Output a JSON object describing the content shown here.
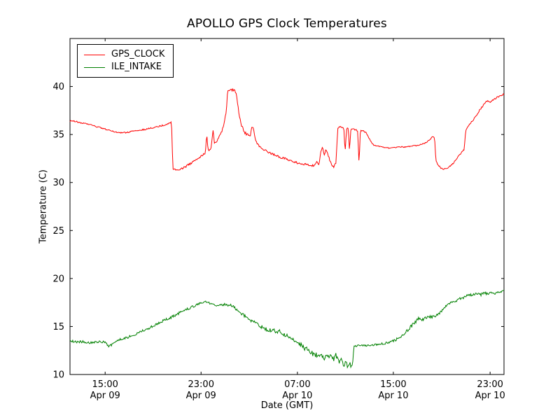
{
  "chart_data": {
    "type": "line",
    "title": "APOLLO GPS Clock Temperatures",
    "xlabel": "Date (GMT)",
    "ylabel": "Temperature (C)",
    "ylim": [
      10,
      45
    ],
    "yticks": [
      10,
      15,
      20,
      25,
      30,
      35,
      40
    ],
    "xticks": [
      {
        "pos": 0.081,
        "time": "15:00",
        "date": "Apr 09"
      },
      {
        "pos": 0.302,
        "time": "23:00",
        "date": "Apr 09"
      },
      {
        "pos": 0.524,
        "time": "07:00",
        "date": "Apr 10"
      },
      {
        "pos": 0.745,
        "time": "15:00",
        "date": "Apr 10"
      },
      {
        "pos": 0.968,
        "time": "23:00",
        "date": "Apr 10"
      }
    ],
    "grid": false,
    "legend_position": "upper-left",
    "colors": {
      "background": "#ffffff",
      "axes": "#000000",
      "text": "#000000"
    },
    "series": [
      {
        "name": "GPS_CLOCK",
        "color": "#ff0000",
        "points": [
          [
            0.0,
            36.4
          ],
          [
            0.01,
            36.4
          ],
          [
            0.025,
            36.2
          ],
          [
            0.04,
            36.1
          ],
          [
            0.055,
            35.9
          ],
          [
            0.07,
            35.7
          ],
          [
            0.085,
            35.5
          ],
          [
            0.1,
            35.3
          ],
          [
            0.115,
            35.2
          ],
          [
            0.13,
            35.2
          ],
          [
            0.15,
            35.4
          ],
          [
            0.17,
            35.5
          ],
          [
            0.19,
            35.7
          ],
          [
            0.21,
            35.9
          ],
          [
            0.225,
            36.1
          ],
          [
            0.234,
            36.3
          ],
          [
            0.237,
            31.4
          ],
          [
            0.245,
            31.3
          ],
          [
            0.255,
            31.4
          ],
          [
            0.265,
            31.6
          ],
          [
            0.275,
            31.9
          ],
          [
            0.285,
            32.2
          ],
          [
            0.295,
            32.5
          ],
          [
            0.305,
            32.8
          ],
          [
            0.312,
            33.1
          ],
          [
            0.315,
            35.2
          ],
          [
            0.318,
            33.3
          ],
          [
            0.325,
            33.6
          ],
          [
            0.33,
            35.5
          ],
          [
            0.333,
            34.0
          ],
          [
            0.34,
            34.4
          ],
          [
            0.345,
            34.9
          ],
          [
            0.35,
            35.3
          ],
          [
            0.355,
            36.2
          ],
          [
            0.36,
            37.3
          ],
          [
            0.363,
            39.5
          ],
          [
            0.37,
            39.7
          ],
          [
            0.378,
            39.6
          ],
          [
            0.383,
            39.4
          ],
          [
            0.387,
            38.0
          ],
          [
            0.39,
            36.8
          ],
          [
            0.395,
            36.0
          ],
          [
            0.4,
            35.4
          ],
          [
            0.405,
            35.1
          ],
          [
            0.41,
            35.0
          ],
          [
            0.415,
            34.8
          ],
          [
            0.419,
            35.9
          ],
          [
            0.423,
            35.6
          ],
          [
            0.427,
            34.6
          ],
          [
            0.432,
            34.0
          ],
          [
            0.438,
            33.7
          ],
          [
            0.445,
            33.5
          ],
          [
            0.455,
            33.2
          ],
          [
            0.465,
            33.0
          ],
          [
            0.475,
            32.8
          ],
          [
            0.485,
            32.6
          ],
          [
            0.495,
            32.5
          ],
          [
            0.505,
            32.3
          ],
          [
            0.515,
            32.2
          ],
          [
            0.525,
            32.0
          ],
          [
            0.535,
            31.9
          ],
          [
            0.545,
            31.9
          ],
          [
            0.555,
            31.8
          ],
          [
            0.562,
            31.7
          ],
          [
            0.568,
            32.2
          ],
          [
            0.573,
            31.7
          ],
          [
            0.578,
            33.2
          ],
          [
            0.582,
            33.7
          ],
          [
            0.586,
            32.9
          ],
          [
            0.59,
            33.5
          ],
          [
            0.594,
            33.0
          ],
          [
            0.598,
            32.4
          ],
          [
            0.603,
            31.8
          ],
          [
            0.608,
            31.6
          ],
          [
            0.613,
            32.1
          ],
          [
            0.617,
            35.7
          ],
          [
            0.622,
            35.8
          ],
          [
            0.627,
            35.7
          ],
          [
            0.631,
            35.6
          ],
          [
            0.634,
            33.1
          ],
          [
            0.637,
            35.6
          ],
          [
            0.641,
            35.7
          ],
          [
            0.644,
            33.3
          ],
          [
            0.647,
            35.5
          ],
          [
            0.652,
            35.6
          ],
          [
            0.658,
            35.5
          ],
          [
            0.663,
            35.4
          ],
          [
            0.666,
            31.9
          ],
          [
            0.669,
            35.4
          ],
          [
            0.675,
            35.4
          ],
          [
            0.682,
            35.2
          ],
          [
            0.688,
            34.7
          ],
          [
            0.694,
            34.2
          ],
          [
            0.7,
            33.9
          ],
          [
            0.708,
            33.8
          ],
          [
            0.716,
            33.7
          ],
          [
            0.73,
            33.6
          ],
          [
            0.745,
            33.6
          ],
          [
            0.76,
            33.7
          ],
          [
            0.775,
            33.7
          ],
          [
            0.79,
            33.8
          ],
          [
            0.805,
            33.9
          ],
          [
            0.818,
            34.1
          ],
          [
            0.828,
            34.4
          ],
          [
            0.836,
            34.8
          ],
          [
            0.84,
            34.7
          ],
          [
            0.843,
            32.3
          ],
          [
            0.848,
            31.8
          ],
          [
            0.855,
            31.5
          ],
          [
            0.862,
            31.4
          ],
          [
            0.87,
            31.5
          ],
          [
            0.878,
            31.8
          ],
          [
            0.885,
            32.1
          ],
          [
            0.892,
            32.5
          ],
          [
            0.898,
            32.9
          ],
          [
            0.903,
            33.2
          ],
          [
            0.908,
            33.4
          ],
          [
            0.912,
            35.5
          ],
          [
            0.918,
            35.9
          ],
          [
            0.925,
            36.3
          ],
          [
            0.932,
            36.7
          ],
          [
            0.94,
            37.3
          ],
          [
            0.948,
            37.8
          ],
          [
            0.955,
            38.2
          ],
          [
            0.962,
            38.5
          ],
          [
            0.97,
            38.4
          ],
          [
            0.978,
            38.7
          ],
          [
            0.985,
            38.9
          ],
          [
            0.992,
            39.0
          ],
          [
            1.0,
            39.2
          ]
        ],
        "jitter": [
          [
            0.0,
            0.07
          ],
          [
            0.23,
            0.07
          ],
          [
            0.25,
            0.1
          ],
          [
            0.31,
            0.12
          ],
          [
            0.35,
            0.1
          ],
          [
            0.4,
            0.15
          ],
          [
            0.44,
            0.1
          ],
          [
            0.5,
            0.1
          ],
          [
            0.56,
            0.12
          ],
          [
            0.62,
            0.08
          ],
          [
            0.7,
            0.06
          ],
          [
            0.82,
            0.05
          ],
          [
            0.86,
            0.08
          ],
          [
            0.905,
            0.08
          ],
          [
            0.92,
            0.1
          ],
          [
            1.0,
            0.08
          ]
        ]
      },
      {
        "name": "ILE_INTAKE",
        "color": "#008000",
        "points": [
          [
            0.0,
            13.5
          ],
          [
            0.015,
            13.4
          ],
          [
            0.03,
            13.4
          ],
          [
            0.045,
            13.3
          ],
          [
            0.06,
            13.4
          ],
          [
            0.075,
            13.4
          ],
          [
            0.085,
            13.2
          ],
          [
            0.09,
            12.9
          ],
          [
            0.096,
            13.1
          ],
          [
            0.105,
            13.5
          ],
          [
            0.12,
            13.7
          ],
          [
            0.135,
            13.9
          ],
          [
            0.15,
            14.2
          ],
          [
            0.165,
            14.5
          ],
          [
            0.18,
            14.8
          ],
          [
            0.195,
            15.1
          ],
          [
            0.21,
            15.5
          ],
          [
            0.225,
            15.8
          ],
          [
            0.24,
            16.1
          ],
          [
            0.255,
            16.5
          ],
          [
            0.27,
            16.8
          ],
          [
            0.285,
            17.1
          ],
          [
            0.3,
            17.4
          ],
          [
            0.312,
            17.6
          ],
          [
            0.322,
            17.4
          ],
          [
            0.332,
            17.2
          ],
          [
            0.345,
            17.2
          ],
          [
            0.358,
            17.3
          ],
          [
            0.37,
            17.2
          ],
          [
            0.378,
            17.0
          ],
          [
            0.386,
            16.7
          ],
          [
            0.394,
            16.4
          ],
          [
            0.402,
            16.1
          ],
          [
            0.41,
            15.8
          ],
          [
            0.42,
            15.6
          ],
          [
            0.43,
            15.3
          ],
          [
            0.44,
            15.0
          ],
          [
            0.45,
            14.8
          ],
          [
            0.458,
            14.6
          ],
          [
            0.466,
            14.7
          ],
          [
            0.474,
            14.4
          ],
          [
            0.482,
            14.5
          ],
          [
            0.49,
            14.2
          ],
          [
            0.5,
            14.0
          ],
          [
            0.51,
            13.7
          ],
          [
            0.52,
            13.4
          ],
          [
            0.53,
            13.1
          ],
          [
            0.54,
            12.8
          ],
          [
            0.55,
            12.5
          ],
          [
            0.558,
            12.2
          ],
          [
            0.566,
            12.0
          ],
          [
            0.574,
            12.1
          ],
          [
            0.582,
            11.8
          ],
          [
            0.59,
            11.7
          ],
          [
            0.598,
            11.9
          ],
          [
            0.606,
            11.5
          ],
          [
            0.612,
            12.0
          ],
          [
            0.618,
            11.3
          ],
          [
            0.624,
            11.6
          ],
          [
            0.63,
            11.0
          ],
          [
            0.636,
            11.1
          ],
          [
            0.641,
            10.7
          ],
          [
            0.645,
            11.2
          ],
          [
            0.648,
            10.8
          ],
          [
            0.651,
            11.0
          ],
          [
            0.654,
            12.9
          ],
          [
            0.66,
            13.0
          ],
          [
            0.67,
            13.0
          ],
          [
            0.68,
            13.0
          ],
          [
            0.69,
            13.0
          ],
          [
            0.7,
            13.1
          ],
          [
            0.71,
            13.1
          ],
          [
            0.72,
            13.2
          ],
          [
            0.73,
            13.3
          ],
          [
            0.74,
            13.4
          ],
          [
            0.75,
            13.6
          ],
          [
            0.76,
            13.9
          ],
          [
            0.77,
            14.2
          ],
          [
            0.778,
            14.6
          ],
          [
            0.786,
            15.0
          ],
          [
            0.794,
            15.4
          ],
          [
            0.8,
            15.7
          ],
          [
            0.806,
            15.9
          ],
          [
            0.812,
            15.7
          ],
          [
            0.818,
            15.9
          ],
          [
            0.826,
            16.0
          ],
          [
            0.834,
            16.0
          ],
          [
            0.842,
            16.1
          ],
          [
            0.85,
            16.3
          ],
          [
            0.858,
            16.7
          ],
          [
            0.866,
            17.1
          ],
          [
            0.874,
            17.4
          ],
          [
            0.882,
            17.5
          ],
          [
            0.89,
            17.7
          ],
          [
            0.898,
            17.9
          ],
          [
            0.906,
            18.0
          ],
          [
            0.914,
            18.2
          ],
          [
            0.922,
            18.3
          ],
          [
            0.93,
            18.3
          ],
          [
            0.938,
            18.4
          ],
          [
            0.946,
            18.3
          ],
          [
            0.954,
            18.5
          ],
          [
            0.962,
            18.4
          ],
          [
            0.97,
            18.5
          ],
          [
            0.978,
            18.4
          ],
          [
            0.986,
            18.6
          ],
          [
            1.0,
            18.7
          ]
        ],
        "jitter": [
          [
            0.0,
            0.12
          ],
          [
            0.35,
            0.13
          ],
          [
            0.42,
            0.18
          ],
          [
            0.46,
            0.22
          ],
          [
            0.52,
            0.22
          ],
          [
            0.56,
            0.3
          ],
          [
            0.63,
            0.32
          ],
          [
            0.648,
            0.25
          ],
          [
            0.655,
            0.1
          ],
          [
            0.7,
            0.1
          ],
          [
            0.74,
            0.12
          ],
          [
            0.78,
            0.18
          ],
          [
            0.82,
            0.14
          ],
          [
            0.86,
            0.12
          ],
          [
            0.9,
            0.13
          ],
          [
            1.0,
            0.12
          ]
        ]
      }
    ]
  }
}
